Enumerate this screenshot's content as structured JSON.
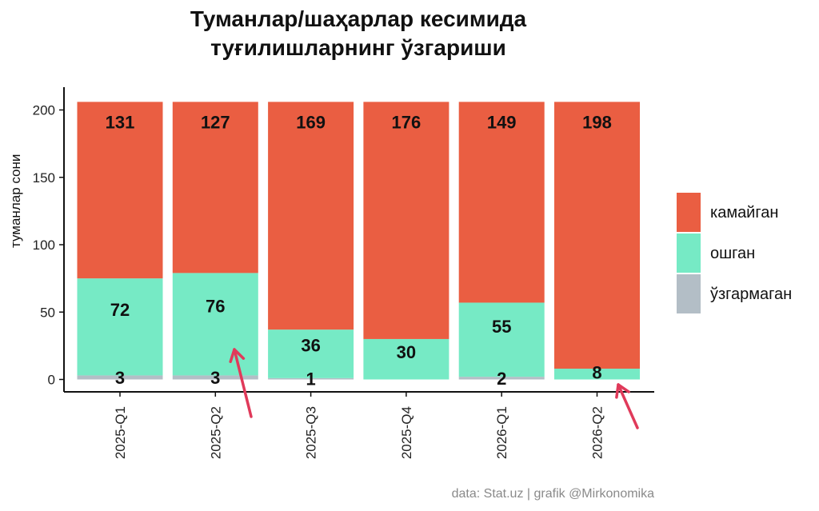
{
  "chart_data": {
    "type": "bar",
    "stacked": true,
    "title_lines": [
      "Туманлар/шаҳарлар кесимида",
      "туғилишларнинг ўзгариши"
    ],
    "ylabel": "туманлар сони",
    "xlabel": "",
    "categories": [
      "2025-Q1",
      "2025-Q2",
      "2025-Q3",
      "2025-Q4",
      "2026-Q1",
      "2026-Q2"
    ],
    "series": [
      {
        "name": "ўзгармаган",
        "color": "#b3bec6",
        "values": [
          3,
          3,
          1,
          0,
          2,
          0
        ]
      },
      {
        "name": "ошган",
        "color": "#76eac5",
        "values": [
          72,
          76,
          36,
          30,
          55,
          8
        ]
      },
      {
        "name": "камайган",
        "color": "#ea5e42",
        "values": [
          131,
          127,
          169,
          176,
          149,
          198
        ]
      }
    ],
    "data_labels": {
      "ўзгармаган": [
        "3",
        "3",
        "1",
        "",
        "2",
        ""
      ],
      "ошган": [
        "72",
        "76",
        "36",
        "30",
        "55",
        "8"
      ],
      "камайган": [
        "131",
        "127",
        "169",
        "176",
        "149",
        "198"
      ]
    },
    "ylim": [
      0,
      206
    ],
    "yticks": [
      0,
      50,
      100,
      150,
      200
    ],
    "grid": false,
    "legend_position": "right",
    "annotations": [
      {
        "type": "arrow",
        "color": "#e03a5a",
        "category": "2025-Q2"
      },
      {
        "type": "arrow",
        "color": "#e03a5a",
        "category": "2026-Q2"
      }
    ]
  },
  "credit": "data: Stat.uz | grafik @Mirkonomika"
}
